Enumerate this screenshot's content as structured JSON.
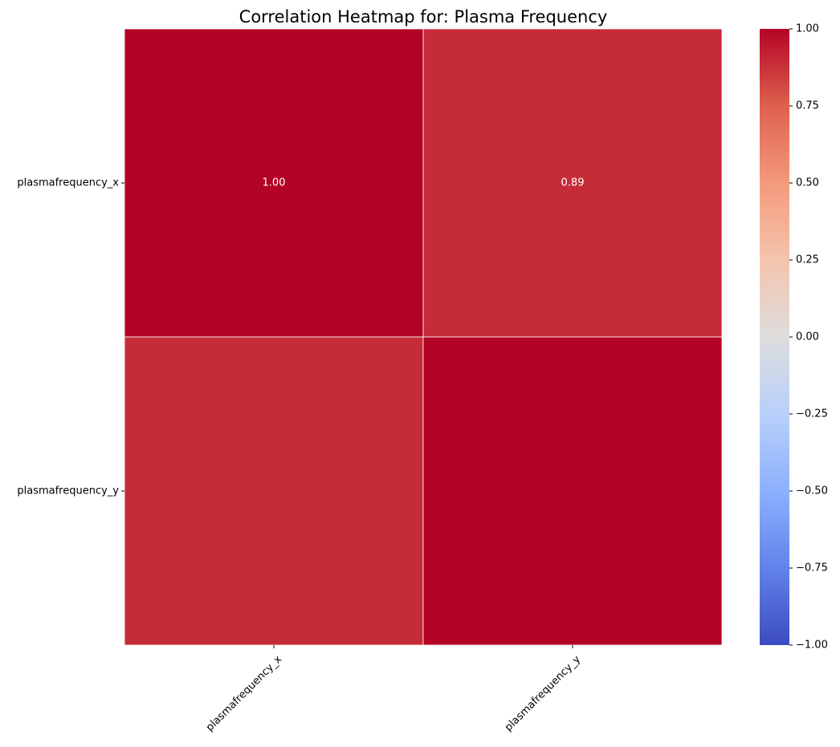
{
  "chart_data": {
    "type": "heatmap",
    "title": "Correlation Heatmap for: Plasma Frequency",
    "rows": [
      "plasmafrequency_x",
      "plasmafrequency_y"
    ],
    "columns": [
      "plasmafrequency_x",
      "plasmafrequency_y"
    ],
    "values": [
      [
        1.0,
        0.89
      ],
      [
        0.89,
        1.0
      ]
    ],
    "cell_labels": [
      [
        "1.00",
        "0.89"
      ],
      [
        "",
        ""
      ]
    ],
    "colormap": "coolwarm",
    "vmin": -1.0,
    "vmax": 1.0,
    "colorbar_ticks": [
      1.0,
      0.75,
      0.5,
      0.25,
      0.0,
      -0.25,
      -0.5,
      -0.75,
      -1.0
    ],
    "colorbar_tick_labels": [
      "1.00",
      "0.75",
      "0.50",
      "0.25",
      "0.00",
      "−0.25",
      "−0.50",
      "−0.75",
      "−1.00"
    ],
    "xtick_rotation": 45,
    "grid": false
  }
}
